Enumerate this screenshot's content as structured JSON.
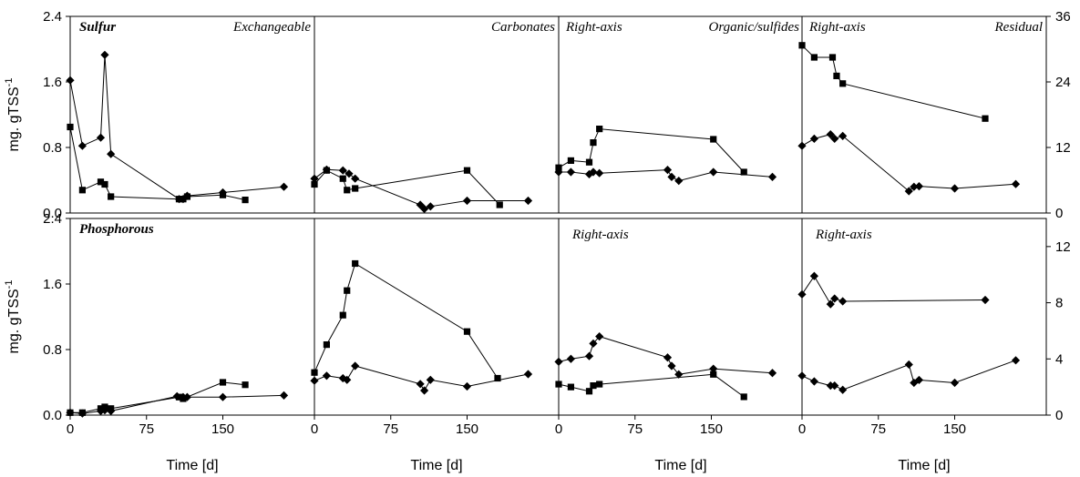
{
  "chart_data": {
    "type": "scatter",
    "series_style": {
      "line": true,
      "markers": [
        "square",
        "diamond"
      ]
    },
    "x_axis": {
      "label": "Time [d]",
      "ticks": [
        0,
        75,
        150
      ],
      "range": [
        0,
        240
      ]
    },
    "left_axis": {
      "label": "mg. gTSS",
      "label_superscript": "-1",
      "range": [
        0,
        2.4
      ],
      "ticks": [
        0.0,
        0.8,
        1.6,
        2.4
      ],
      "tick_labels": [
        "0.0",
        "0.8",
        "1.6",
        "2.4"
      ]
    },
    "right_axis": {
      "row1": {
        "range": [
          0,
          36
        ],
        "ticks": [
          0,
          12,
          24,
          36
        ]
      },
      "row2": {
        "range": [
          0,
          14
        ],
        "ticks": [
          0,
          4,
          8,
          12
        ]
      }
    },
    "row_labels": [
      "Sulfur",
      "Phosphorous"
    ],
    "fraction_labels": [
      "Exchangeable",
      "Carbonates",
      "Organic/sulfides",
      "Residual"
    ],
    "panels": [
      {
        "row": 0,
        "col": 0,
        "axis": "left",
        "row_label": "Sulfur",
        "fraction": "Exchangeable",
        "series": [
          {
            "marker": "square",
            "x": [
              0,
              12,
              30,
              34,
              40,
              107,
              111,
              115,
              150,
              172
            ],
            "y": [
              1.05,
              0.28,
              0.38,
              0.35,
              0.2,
              0.17,
              0.17,
              0.2,
              0.22,
              0.16
            ]
          },
          {
            "marker": "diamond",
            "x": [
              0,
              12,
              30,
              34,
              40,
              107,
              111,
              115,
              150,
              210
            ],
            "y": [
              1.62,
              0.82,
              0.92,
              1.93,
              0.72,
              0.17,
              0.17,
              0.21,
              0.25,
              0.32
            ]
          }
        ]
      },
      {
        "row": 0,
        "col": 1,
        "axis": "left",
        "fraction": "Carbonates",
        "series": [
          {
            "marker": "square",
            "x": [
              0,
              12,
              28,
              32,
              40,
              150,
              182
            ],
            "y": [
              0.35,
              0.52,
              0.42,
              0.28,
              0.3,
              0.52,
              0.1
            ]
          },
          {
            "marker": "diamond",
            "x": [
              0,
              12,
              28,
              34,
              40,
              104,
              108,
              114,
              150,
              210
            ],
            "y": [
              0.42,
              0.53,
              0.52,
              0.48,
              0.42,
              0.1,
              0.05,
              0.08,
              0.15,
              0.15
            ]
          }
        ]
      },
      {
        "row": 0,
        "col": 2,
        "axis": "right",
        "axis_note": "Right-axis",
        "fraction": "Organic/sulfides",
        "series": [
          {
            "marker": "square",
            "x": [
              0,
              12,
              30,
              34,
              40,
              152,
              182
            ],
            "y": [
              8.3,
              9.6,
              9.3,
              12.9,
              15.4,
              13.5,
              7.5
            ]
          },
          {
            "marker": "diamond",
            "x": [
              0,
              12,
              30,
              34,
              40,
              107,
              111,
              118,
              152,
              210
            ],
            "y": [
              7.5,
              7.5,
              7.1,
              7.5,
              7.3,
              7.9,
              6.6,
              5.9,
              7.5,
              6.6
            ]
          }
        ]
      },
      {
        "row": 0,
        "col": 3,
        "axis": "right",
        "axis_note": "Right-axis",
        "fraction": "Residual",
        "series": [
          {
            "marker": "square",
            "x": [
              0,
              12,
              30,
              34,
              40,
              180
            ],
            "y": [
              30.7,
              28.5,
              28.5,
              25.1,
              23.7,
              17.3
            ]
          },
          {
            "marker": "diamond",
            "x": [
              0,
              12,
              28,
              32,
              40,
              105,
              110,
              115,
              150,
              210
            ],
            "y": [
              12.3,
              13.6,
              14.4,
              13.6,
              14.1,
              4.0,
              4.8,
              4.9,
              4.5,
              5.3
            ]
          }
        ]
      },
      {
        "row": 1,
        "col": 0,
        "axis": "left",
        "row_label": "Phosphorous",
        "series": [
          {
            "marker": "square",
            "x": [
              0,
              12,
              30,
              34,
              40,
              107,
              111,
              150,
              172
            ],
            "y": [
              0.03,
              0.03,
              0.08,
              0.1,
              0.08,
              0.22,
              0.2,
              0.4,
              0.37
            ]
          },
          {
            "marker": "diamond",
            "x": [
              0,
              12,
              30,
              34,
              40,
              105,
              111,
              115,
              150,
              210
            ],
            "y": [
              0.03,
              0.02,
              0.05,
              0.06,
              0.05,
              0.23,
              0.22,
              0.22,
              0.22,
              0.24
            ]
          }
        ]
      },
      {
        "row": 1,
        "col": 1,
        "axis": "left",
        "series": [
          {
            "marker": "square",
            "x": [
              0,
              12,
              28,
              32,
              40,
              150,
              180
            ],
            "y": [
              0.52,
              0.86,
              1.22,
              1.52,
              1.85,
              1.02,
              0.45
            ]
          },
          {
            "marker": "diamond",
            "x": [
              0,
              12,
              28,
              32,
              40,
              104,
              108,
              114,
              150,
              210
            ],
            "y": [
              0.42,
              0.48,
              0.45,
              0.43,
              0.6,
              0.38,
              0.3,
              0.43,
              0.35,
              0.5
            ]
          }
        ]
      },
      {
        "row": 1,
        "col": 2,
        "axis": "right",
        "axis_note": "Right-axis",
        "series": [
          {
            "marker": "square",
            "x": [
              0,
              12,
              30,
              34,
              40,
              152,
              182
            ],
            "y": [
              2.2,
              2.0,
              1.7,
              2.1,
              2.2,
              2.9,
              1.3
            ]
          },
          {
            "marker": "diamond",
            "x": [
              0,
              12,
              30,
              34,
              40,
              107,
              111,
              118,
              152,
              210
            ],
            "y": [
              3.8,
              4.0,
              4.2,
              5.1,
              5.6,
              4.1,
              3.5,
              2.9,
              3.3,
              3.0
            ]
          }
        ]
      },
      {
        "row": 1,
        "col": 3,
        "axis": "right",
        "axis_note": "Right-axis",
        "series": [
          {
            "marker": "diamond",
            "x": [
              0,
              12,
              28,
              32,
              40,
              180
            ],
            "y": [
              8.6,
              9.9,
              7.9,
              8.3,
              8.1,
              8.2
            ]
          },
          {
            "marker": "diamond",
            "x": [
              0,
              12,
              28,
              32,
              40,
              105,
              110,
              115,
              150,
              210
            ],
            "y": [
              2.8,
              2.4,
              2.1,
              2.1,
              1.8,
              3.6,
              2.3,
              2.5,
              2.3,
              3.9
            ]
          }
        ]
      }
    ]
  }
}
